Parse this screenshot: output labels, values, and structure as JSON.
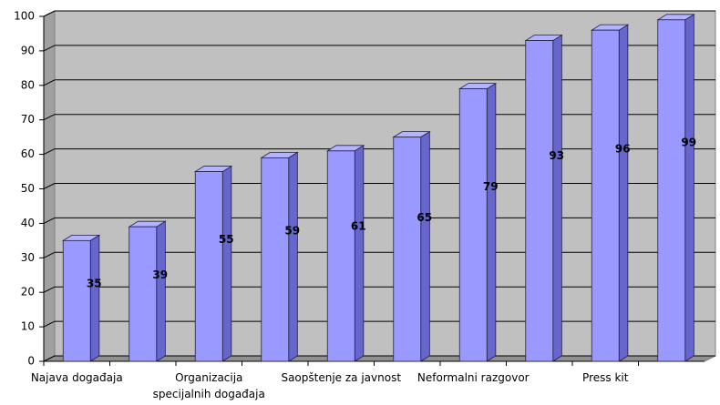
{
  "chart_data": {
    "type": "bar3d",
    "categories": [
      "Najava događaja",
      null,
      "Organizacija\nspecijalnih događaja",
      null,
      "Saopštenje za javnost",
      null,
      "Neformalni razgovor",
      null,
      "Press kit",
      null
    ],
    "values": [
      35,
      39,
      55,
      59,
      61,
      65,
      79,
      93,
      96,
      99
    ],
    "color": "#9999ff",
    "ylim": [
      0,
      100
    ],
    "yticks": [
      0,
      10,
      20,
      30,
      40,
      50,
      60,
      70,
      80,
      90,
      100
    ],
    "grid": true
  }
}
